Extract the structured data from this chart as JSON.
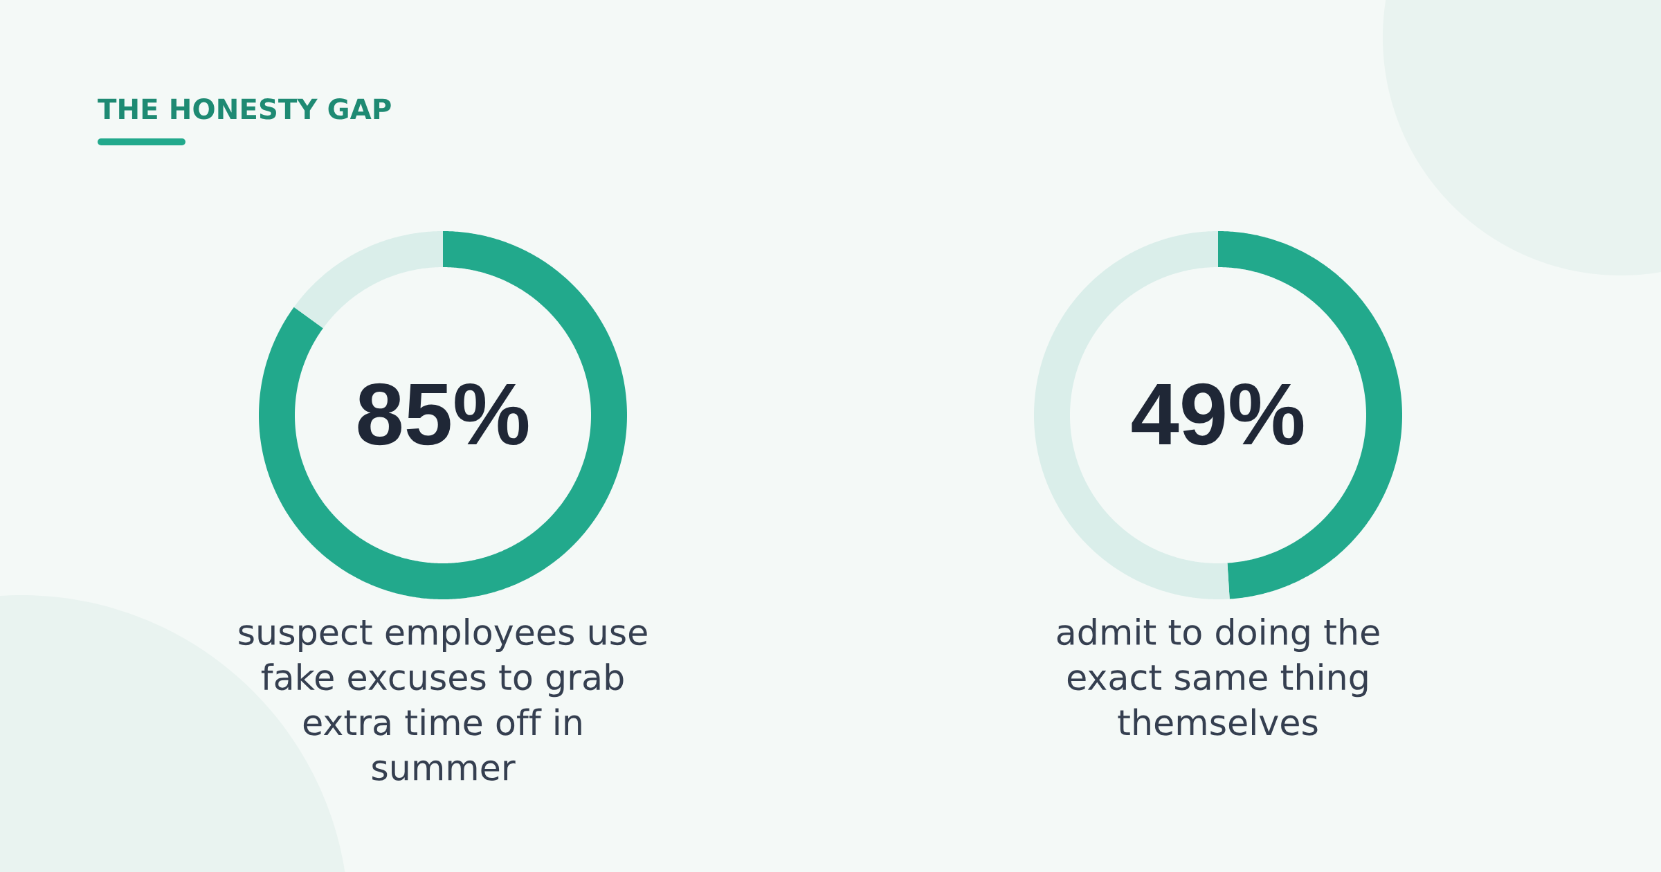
{
  "chart_data": [
    {
      "type": "donut",
      "title": "THE HONESTY GAP",
      "categories": [
        null,
        null
      ],
      "values": [
        85,
        15
      ],
      "colors": [
        "#22a98c",
        "#daeeea"
      ],
      "annotations": [
        "85%",
        "suspect employees use\nfake excuses to grab\nextra time off in\nsummer"
      ]
    },
    {
      "type": "donut",
      "categories": [
        null,
        null
      ],
      "values": [
        49,
        51
      ],
      "colors": [
        "#22a98c",
        "#daeeea"
      ],
      "annotations": [
        "49%",
        "admit to doing the\nexact same thing\nthemselves"
      ]
    }
  ]
}
